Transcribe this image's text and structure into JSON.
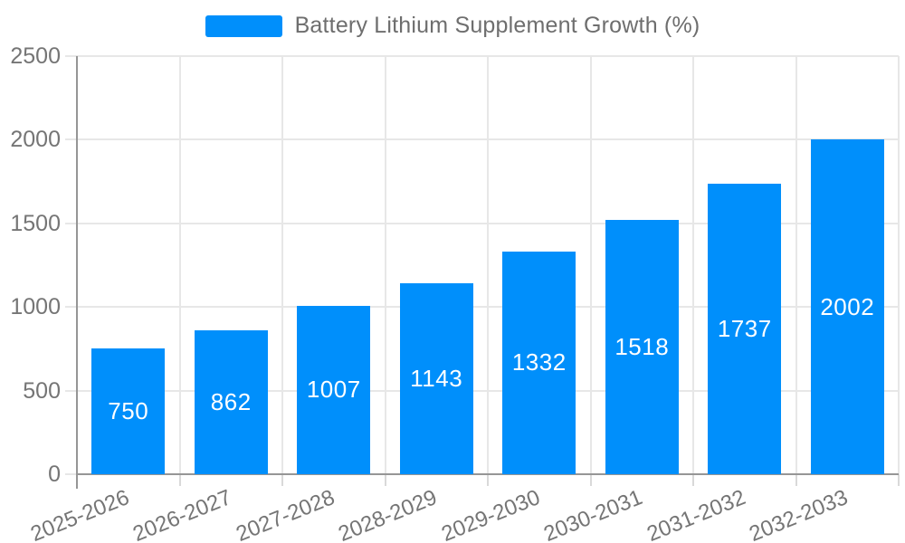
{
  "legend": {
    "items": [
      {
        "label": "Battery Lithium Supplement Growth (%)",
        "color": "#008FFB"
      }
    ]
  },
  "chart_data": {
    "type": "bar",
    "title": "Battery Lithium Supplement Growth (%)",
    "categories": [
      "2025-2026",
      "2026-2027",
      "2027-2028",
      "2028-2029",
      "2029-2030",
      "2030-2031",
      "2031-2032",
      "2032-2033"
    ],
    "values": [
      750,
      862,
      1007,
      1143,
      1332,
      1518,
      1737,
      2002
    ],
    "xlabel": "",
    "ylabel": "",
    "ylim": [
      0,
      2500
    ],
    "yticks": [
      0,
      500,
      1000,
      1500,
      2000,
      2500
    ],
    "grid": true,
    "legend_position": "top",
    "bar_color": "#008FFB",
    "data_label_color": "#ffffff",
    "axis_label_color": "#757575"
  }
}
